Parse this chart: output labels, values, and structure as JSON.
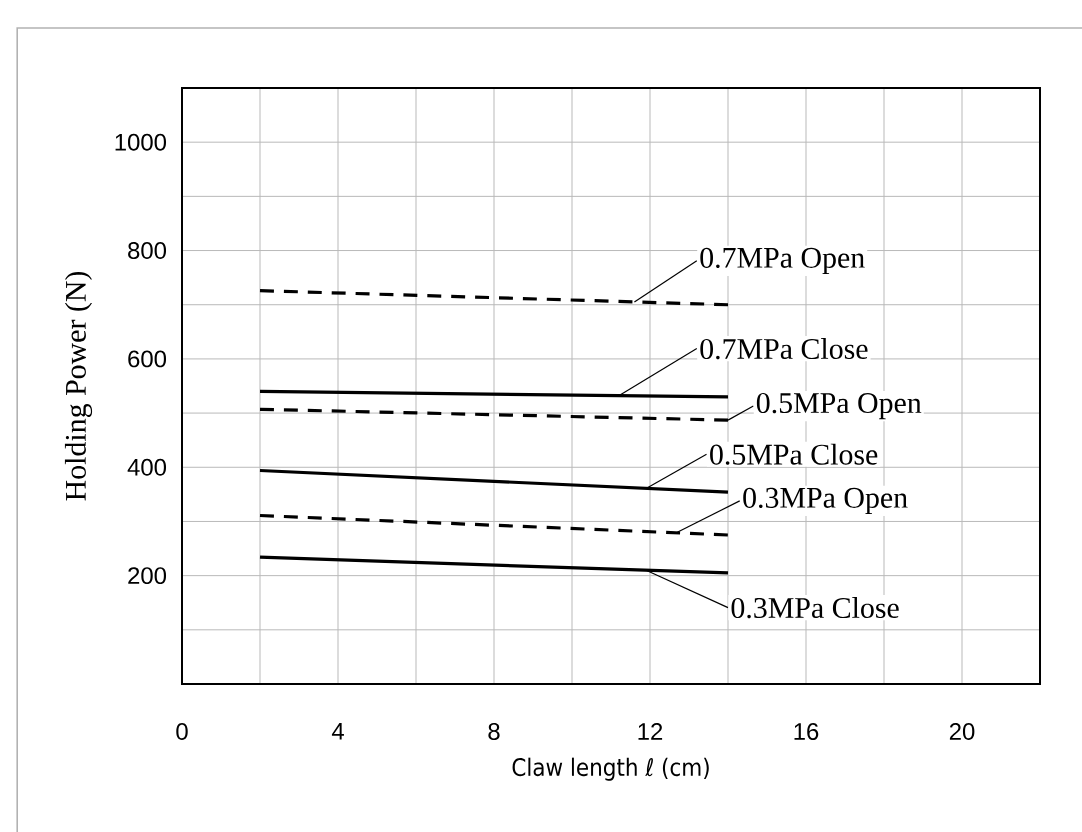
{
  "chart_data": {
    "type": "line",
    "xlabel": "Claw length ℓ (cm)",
    "ylabel": "Holding Power (N)",
    "xlim": [
      0,
      22
    ],
    "ylim": [
      0,
      1100
    ],
    "xticks": [
      0,
      {
        "value": 2,
        "label": null
      },
      4,
      {
        "value": 6,
        "label": null
      },
      8,
      {
        "value": 10,
        "label": null
      },
      12,
      {
        "value": 14,
        "label": null
      },
      16,
      {
        "value": 18,
        "label": null
      },
      20
    ],
    "yticks": [
      {
        "value": 100,
        "label": null
      },
      200,
      {
        "value": 300,
        "label": null
      },
      400,
      {
        "value": 500,
        "label": null
      },
      600,
      {
        "value": 700,
        "label": null
      },
      800,
      {
        "value": 900,
        "label": null
      },
      1000
    ],
    "grid": true,
    "x": [
      2,
      14
    ],
    "series": [
      {
        "color": "#000000",
        "line_style": "dashed",
        "values": [
          726,
          700
        ]
      },
      {
        "color": "#000000",
        "line_style": "solid",
        "values": [
          540,
          530
        ]
      },
      {
        "color": "#000000",
        "line_style": "dashed",
        "values": [
          507,
          487
        ]
      },
      {
        "color": "#000000",
        "line_style": "solid",
        "values": [
          394,
          354
        ]
      },
      {
        "color": "#000000",
        "line_style": "dashed",
        "values": [
          311,
          275
        ]
      },
      {
        "color": "#000000",
        "line_style": "solid",
        "values": [
          234,
          205
        ]
      }
    ],
    "annotations": [
      {
        "text": "0.7MPa Open",
        "x": 11.6,
        "y": 705
      },
      {
        "text": "0.7MPa Close",
        "x": 11.2,
        "y": 532
      },
      {
        "text": "0.5MPa Open",
        "x": 14,
        "y": 487
      },
      {
        "text": "0.5MPa Close",
        "x": 11.9,
        "y": 361
      },
      {
        "text": "0.3MPa Open",
        "x": 12.7,
        "y": 280
      },
      {
        "text": "0.3MPa Close",
        "x": 11.9,
        "y": 210
      }
    ]
  }
}
